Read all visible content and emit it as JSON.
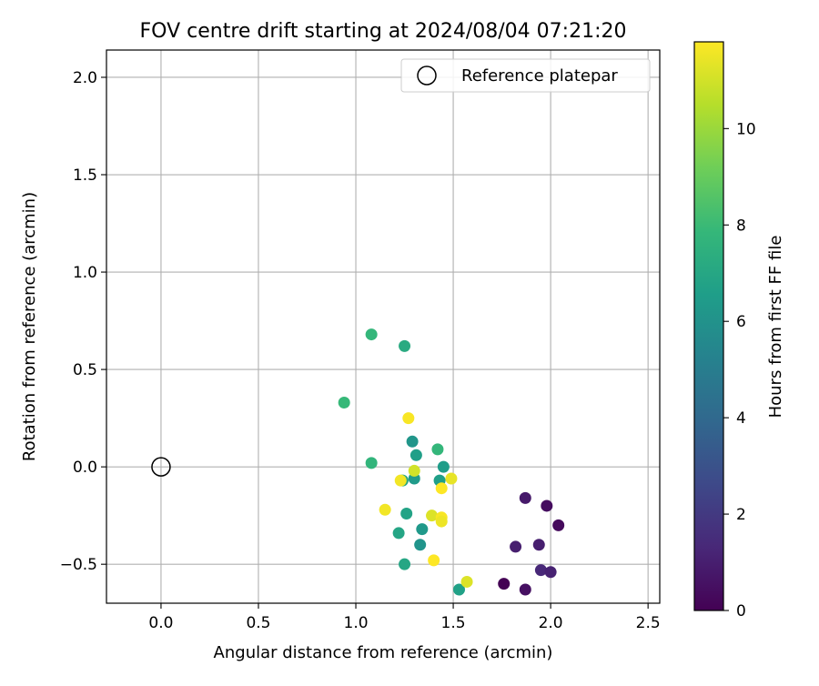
{
  "chart_data": {
    "type": "scatter",
    "title": "FOV centre drift starting at 2024/08/04 07:21:20",
    "xlabel": "Angular distance from reference (arcmin)",
    "ylabel": "Rotation from reference (arcmin)",
    "colorbar_label": "Hours from first FF file",
    "xlim": [
      -0.28,
      2.56
    ],
    "ylim": [
      -0.7,
      2.14
    ],
    "xticks": [
      0.0,
      0.5,
      1.0,
      1.5,
      2.0,
      2.5
    ],
    "yticks": [
      -0.5,
      0.0,
      0.5,
      1.0,
      1.5,
      2.0
    ],
    "colorbar_ticks": [
      0,
      2,
      4,
      6,
      8,
      10
    ],
    "colorbar_range": [
      0,
      11.8
    ],
    "grid": true,
    "legend": {
      "placement": "top-right",
      "entries": [
        "Reference platepar"
      ]
    },
    "reference_point": {
      "x": 0.0,
      "y": 0.0
    },
    "points": [
      {
        "x": 2.04,
        "y": -0.3,
        "hours": 0.3
      },
      {
        "x": 1.98,
        "y": -0.2,
        "hours": 0.4
      },
      {
        "x": 1.87,
        "y": -0.16,
        "hours": 0.8
      },
      {
        "x": 1.82,
        "y": -0.41,
        "hours": 1.0
      },
      {
        "x": 1.94,
        "y": -0.4,
        "hours": 1.0
      },
      {
        "x": 1.76,
        "y": -0.6,
        "hours": 0.0
      },
      {
        "x": 1.87,
        "y": -0.63,
        "hours": 0.5
      },
      {
        "x": 1.95,
        "y": -0.53,
        "hours": 1.3
      },
      {
        "x": 2.0,
        "y": -0.54,
        "hours": 1.1
      },
      {
        "x": 1.29,
        "y": 0.13,
        "hours": 6.2
      },
      {
        "x": 1.31,
        "y": 0.06,
        "hours": 6.6
      },
      {
        "x": 1.3,
        "y": -0.06,
        "hours": 6.4
      },
      {
        "x": 1.26,
        "y": -0.24,
        "hours": 6.8
      },
      {
        "x": 1.34,
        "y": -0.32,
        "hours": 6.3
      },
      {
        "x": 1.22,
        "y": -0.34,
        "hours": 6.9
      },
      {
        "x": 1.33,
        "y": -0.4,
        "hours": 6.1
      },
      {
        "x": 1.25,
        "y": -0.5,
        "hours": 7.0
      },
      {
        "x": 1.53,
        "y": -0.63,
        "hours": 6.7
      },
      {
        "x": 1.43,
        "y": -0.07,
        "hours": 6.6
      },
      {
        "x": 1.45,
        "y": 0.0,
        "hours": 6.5
      },
      {
        "x": 1.24,
        "y": -0.07,
        "hours": 7.0
      },
      {
        "x": 1.08,
        "y": 0.68,
        "hours": 7.8
      },
      {
        "x": 1.25,
        "y": 0.62,
        "hours": 7.2
      },
      {
        "x": 0.94,
        "y": 0.33,
        "hours": 7.9
      },
      {
        "x": 1.08,
        "y": 0.02,
        "hours": 7.7
      },
      {
        "x": 1.42,
        "y": 0.09,
        "hours": 7.8
      },
      {
        "x": 1.27,
        "y": 0.25,
        "hours": 11.7
      },
      {
        "x": 1.3,
        "y": -0.02,
        "hours": 11.0
      },
      {
        "x": 1.23,
        "y": -0.07,
        "hours": 11.6
      },
      {
        "x": 1.49,
        "y": -0.06,
        "hours": 11.4
      },
      {
        "x": 1.44,
        "y": -0.11,
        "hours": 11.8
      },
      {
        "x": 1.15,
        "y": -0.22,
        "hours": 11.6
      },
      {
        "x": 1.39,
        "y": -0.25,
        "hours": 11.2
      },
      {
        "x": 1.44,
        "y": -0.26,
        "hours": 11.7
      },
      {
        "x": 1.44,
        "y": -0.28,
        "hours": 11.5
      },
      {
        "x": 1.4,
        "y": -0.48,
        "hours": 11.8
      },
      {
        "x": 1.57,
        "y": -0.59,
        "hours": 11.2
      }
    ],
    "colormap": "viridis",
    "colormap_stops": [
      "#440154",
      "#482878",
      "#3e4989",
      "#31688e",
      "#26828e",
      "#1f9e89",
      "#35b779",
      "#6ece58",
      "#b5de2b",
      "#fde725"
    ]
  }
}
